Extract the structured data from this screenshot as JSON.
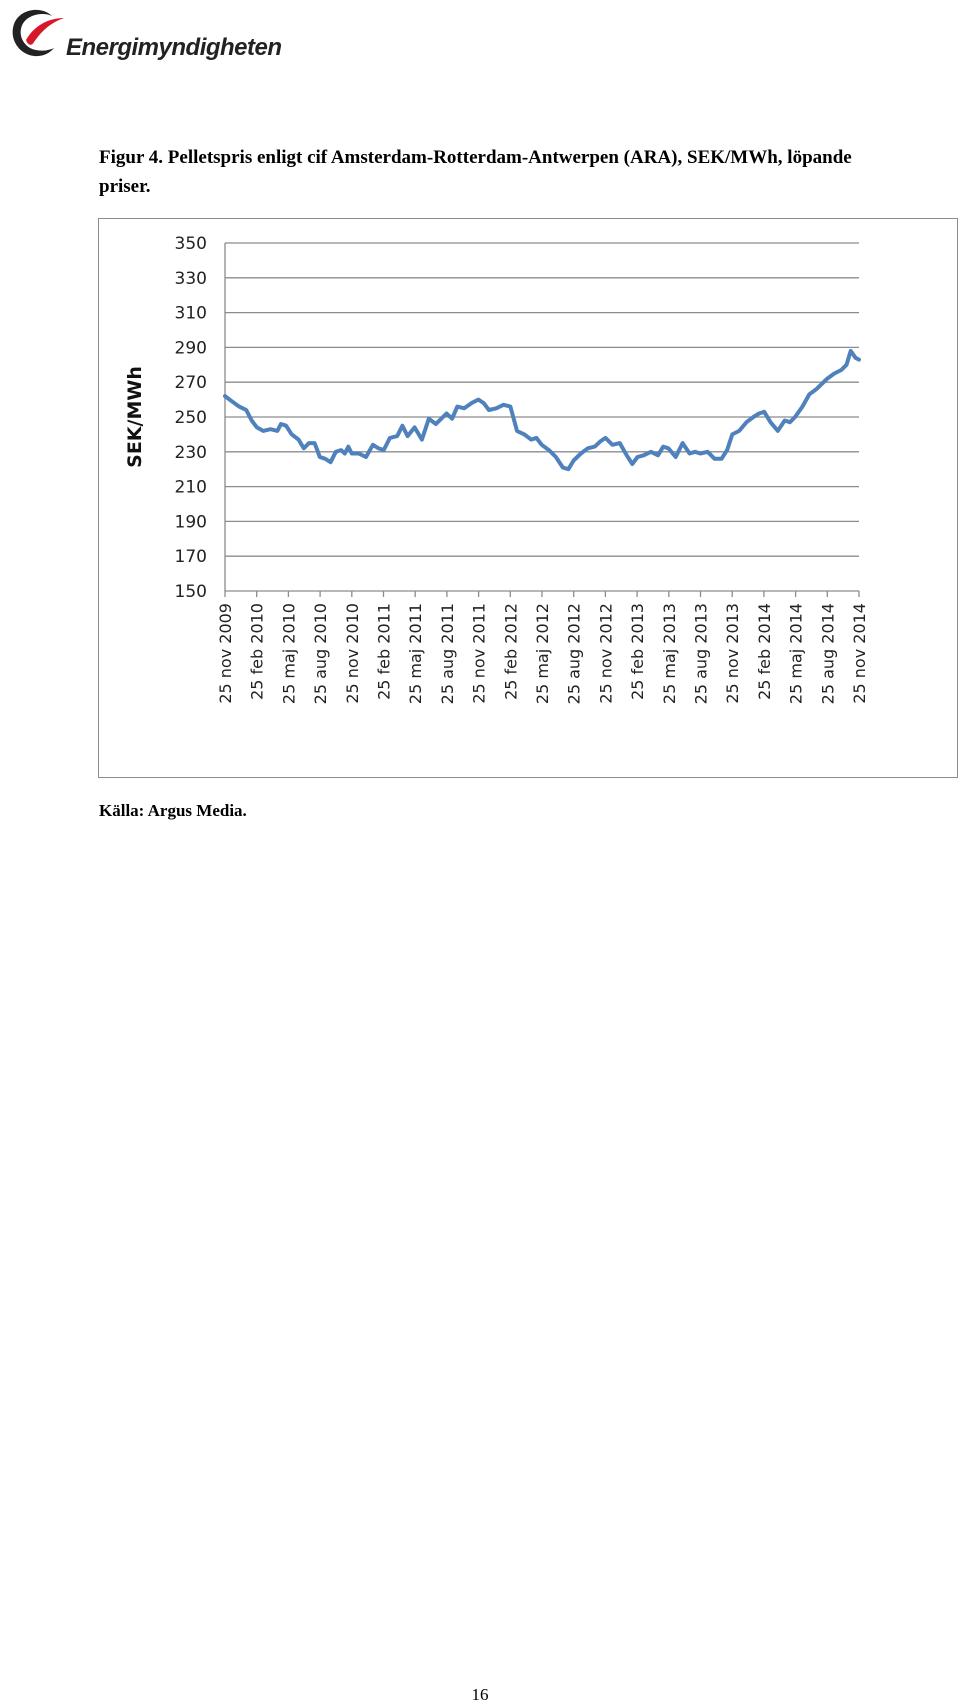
{
  "header": {
    "logo_text": "Energimyndigheten",
    "colors": {
      "logo_arc": "#222222",
      "logo_accent": "#d7182a"
    }
  },
  "caption": {
    "line1": "Figur 4. Pelletspris enligt cif Amsterdam-Rotterdam-Antwerpen (ARA), SEK/MWh, löpande",
    "line2": "priser."
  },
  "chart_data": {
    "type": "line",
    "title": "",
    "xlabel": "",
    "ylabel": "SEK/MWh",
    "ylim": [
      150,
      350
    ],
    "yticks": [
      150,
      170,
      190,
      210,
      230,
      250,
      270,
      290,
      310,
      330,
      350
    ],
    "xlim": [
      "2009-11-25",
      "2014-11-25"
    ],
    "grid": true,
    "legend": "none",
    "line_color": "#4f81bd",
    "categories": [
      "25 nov 2009",
      "25 feb 2010",
      "25 maj 2010",
      "25 aug 2010",
      "25 nov 2010",
      "25 feb 2011",
      "25 maj 2011",
      "25 aug 2011",
      "25 nov 2011",
      "25 feb 2012",
      "25 maj 2012",
      "25 aug 2012",
      "25 nov 2012",
      "25 feb 2013",
      "25 maj 2013",
      "25 aug 2013",
      "25 nov 2013",
      "25 feb 2014",
      "25 maj 2014",
      "25 aug 2014",
      "25 nov 2014"
    ],
    "series": [
      {
        "values": [
          [
            "2009-11-25",
            262
          ],
          [
            "2009-12-15",
            259
          ],
          [
            "2010-01-05",
            256
          ],
          [
            "2010-01-25",
            254
          ],
          [
            "2010-02-10",
            248
          ],
          [
            "2010-02-25",
            244
          ],
          [
            "2010-03-15",
            242
          ],
          [
            "2010-04-05",
            243
          ],
          [
            "2010-04-25",
            242
          ],
          [
            "2010-05-05",
            246
          ],
          [
            "2010-05-20",
            245
          ],
          [
            "2010-06-05",
            240
          ],
          [
            "2010-06-25",
            237
          ],
          [
            "2010-07-10",
            232
          ],
          [
            "2010-07-25",
            235
          ],
          [
            "2010-08-10",
            235
          ],
          [
            "2010-08-25",
            227
          ],
          [
            "2010-09-10",
            226
          ],
          [
            "2010-09-25",
            224
          ],
          [
            "2010-10-10",
            230
          ],
          [
            "2010-10-25",
            231
          ],
          [
            "2010-11-05",
            229
          ],
          [
            "2010-11-15",
            233
          ],
          [
            "2010-11-25",
            229
          ],
          [
            "2010-12-15",
            229
          ],
          [
            "2011-01-05",
            227
          ],
          [
            "2011-01-25",
            234
          ],
          [
            "2011-02-10",
            232
          ],
          [
            "2011-02-25",
            231
          ],
          [
            "2011-03-15",
            238
          ],
          [
            "2011-04-05",
            239
          ],
          [
            "2011-04-20",
            245
          ],
          [
            "2011-05-05",
            239
          ],
          [
            "2011-05-25",
            244
          ],
          [
            "2011-06-15",
            237
          ],
          [
            "2011-07-05",
            249
          ],
          [
            "2011-07-25",
            246
          ],
          [
            "2011-08-10",
            249
          ],
          [
            "2011-08-25",
            252
          ],
          [
            "2011-09-10",
            249
          ],
          [
            "2011-09-25",
            256
          ],
          [
            "2011-10-15",
            255
          ],
          [
            "2011-11-05",
            258
          ],
          [
            "2011-11-25",
            260
          ],
          [
            "2011-12-10",
            258
          ],
          [
            "2011-12-25",
            254
          ],
          [
            "2012-01-15",
            255
          ],
          [
            "2012-02-05",
            257
          ],
          [
            "2012-02-25",
            256
          ],
          [
            "2012-03-15",
            242
          ],
          [
            "2012-04-05",
            240
          ],
          [
            "2012-04-25",
            237
          ],
          [
            "2012-05-10",
            238
          ],
          [
            "2012-05-25",
            234
          ],
          [
            "2012-06-15",
            231
          ],
          [
            "2012-07-05",
            227
          ],
          [
            "2012-07-25",
            221
          ],
          [
            "2012-08-10",
            220
          ],
          [
            "2012-08-25",
            225
          ],
          [
            "2012-09-15",
            229
          ],
          [
            "2012-10-05",
            232
          ],
          [
            "2012-10-25",
            233
          ],
          [
            "2012-11-10",
            236
          ],
          [
            "2012-11-25",
            238
          ],
          [
            "2012-12-15",
            234
          ],
          [
            "2013-01-05",
            235
          ],
          [
            "2013-01-25",
            228
          ],
          [
            "2013-02-10",
            223
          ],
          [
            "2013-02-25",
            227
          ],
          [
            "2013-03-15",
            228
          ],
          [
            "2013-04-05",
            230
          ],
          [
            "2013-04-25",
            228
          ],
          [
            "2013-05-10",
            233
          ],
          [
            "2013-05-25",
            232
          ],
          [
            "2013-06-15",
            227
          ],
          [
            "2013-07-05",
            235
          ],
          [
            "2013-07-25",
            229
          ],
          [
            "2013-08-10",
            230
          ],
          [
            "2013-08-25",
            229
          ],
          [
            "2013-09-15",
            230
          ],
          [
            "2013-10-05",
            226
          ],
          [
            "2013-10-25",
            226
          ],
          [
            "2013-11-10",
            231
          ],
          [
            "2013-11-25",
            240
          ],
          [
            "2013-12-15",
            242
          ],
          [
            "2014-01-05",
            247
          ],
          [
            "2014-01-25",
            250
          ],
          [
            "2014-02-10",
            252
          ],
          [
            "2014-02-25",
            253
          ],
          [
            "2014-03-15",
            247
          ],
          [
            "2014-04-05",
            242
          ],
          [
            "2014-04-25",
            248
          ],
          [
            "2014-05-10",
            247
          ],
          [
            "2014-05-25",
            250
          ],
          [
            "2014-06-15",
            256
          ],
          [
            "2014-07-05",
            263
          ],
          [
            "2014-07-25",
            266
          ],
          [
            "2014-08-10",
            269
          ],
          [
            "2014-08-25",
            272
          ],
          [
            "2014-09-15",
            275
          ],
          [
            "2014-10-05",
            277
          ],
          [
            "2014-10-20",
            280
          ],
          [
            "2014-11-01",
            288
          ],
          [
            "2014-11-15",
            284
          ],
          [
            "2014-11-25",
            283
          ]
        ]
      }
    ]
  },
  "source": "Källa: Argus Media.",
  "page_number": "16"
}
